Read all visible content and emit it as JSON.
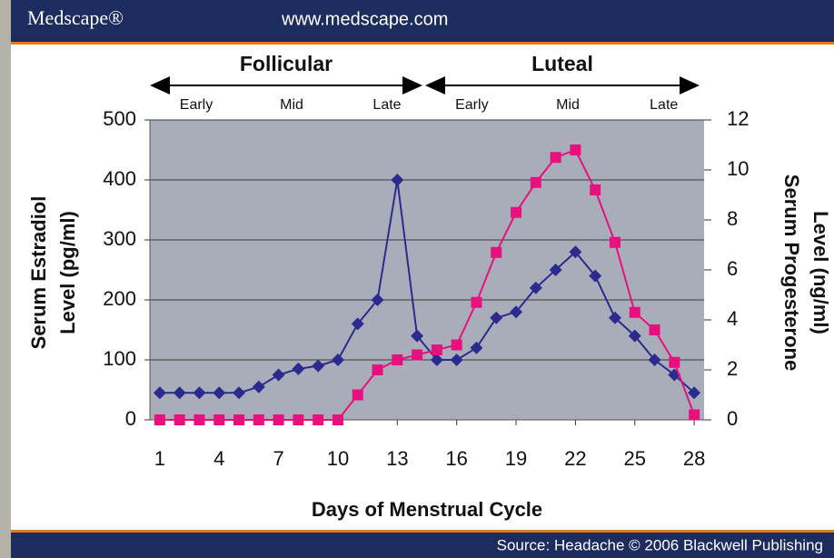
{
  "header": {
    "brand": "Medscape®",
    "url": "www.medscape.com"
  },
  "footer": {
    "source": "Source: Headache © 2006 Blackwell Publishing"
  },
  "chart_data": {
    "type": "line",
    "phases": [
      {
        "label": "Follicular",
        "subphases": [
          "Early",
          "Mid",
          "Late"
        ]
      },
      {
        "label": "Luteal",
        "subphases": [
          "Early",
          "Mid",
          "Late"
        ]
      }
    ],
    "xlabel": "Days of Menstrual Cycle",
    "ylabel": [
      "Serum Estradiol",
      "Level (pg/ml)"
    ],
    "y2label": [
      "Serum Progesterone",
      "Level (ng/ml)"
    ],
    "x": [
      1,
      2,
      3,
      4,
      5,
      6,
      7,
      8,
      9,
      10,
      11,
      12,
      13,
      14,
      15,
      16,
      17,
      18,
      19,
      20,
      21,
      22,
      23,
      24,
      25,
      26,
      27,
      28
    ],
    "xlim": [
      0.5,
      28.5
    ],
    "xticks": [
      1,
      4,
      7,
      10,
      13,
      16,
      19,
      22,
      25,
      28
    ],
    "ylim": [
      0,
      500
    ],
    "yticks": [
      0,
      100,
      200,
      300,
      400,
      500
    ],
    "y2lim": [
      0,
      12
    ],
    "y2ticks": [
      0,
      2,
      4,
      6,
      8,
      10,
      12
    ],
    "grid": true,
    "series": [
      {
        "name": "Estradiol",
        "color": "#2b2b8f",
        "marker": "diamond",
        "values": [
          45,
          45,
          45,
          45,
          45,
          55,
          75,
          85,
          90,
          100,
          160,
          200,
          400,
          140,
          100,
          100,
          120,
          170,
          180,
          220,
          250,
          280,
          240,
          170,
          140,
          100,
          75,
          45
        ]
      },
      {
        "name": "Progesterone",
        "color": "#e8107f",
        "marker": "square",
        "axis": "y2",
        "values": [
          0,
          0,
          0,
          0,
          0,
          0,
          0,
          0,
          0,
          0,
          1,
          2,
          2.4,
          2.6,
          2.8,
          3,
          4.7,
          6.7,
          8.3,
          9.5,
          10.5,
          10.8,
          9.2,
          7.1,
          4.3,
          3.6,
          2.3,
          0.2
        ]
      }
    ]
  }
}
